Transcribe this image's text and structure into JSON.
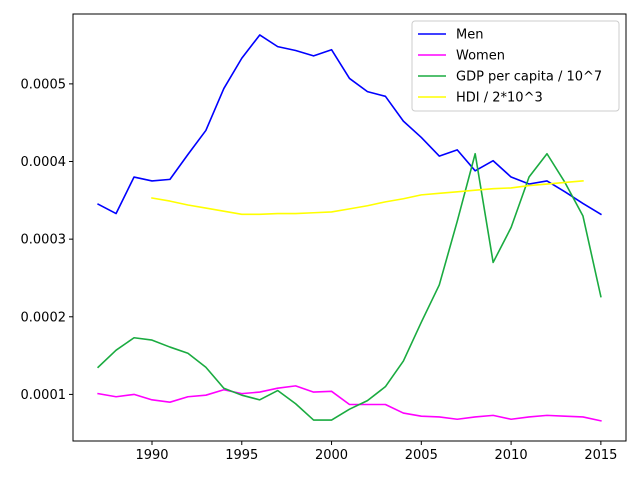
{
  "chart_data": {
    "type": "line",
    "title": "",
    "xlabel": "",
    "ylabel": "",
    "xlim": [
      1985.6,
      2016.4
    ],
    "ylim": [
      4e-05,
      0.00059
    ],
    "x_ticks": [
      1990,
      1995,
      2000,
      2005,
      2010,
      2015
    ],
    "x_tick_labels": [
      "1990",
      "1995",
      "2000",
      "2005",
      "2010",
      "2015"
    ],
    "y_ticks": [
      0.0001,
      0.0002,
      0.0003,
      0.0004,
      0.0005
    ],
    "y_tick_labels": [
      "0.0001",
      "0.0002",
      "0.0003",
      "0.0004",
      "0.0005"
    ],
    "grid": false,
    "legend_position": "top-right",
    "series": [
      {
        "name": "Men",
        "color": "#0000ff",
        "x": [
          1987,
          1988,
          1989,
          1990,
          1991,
          1992,
          1993,
          1994,
          1995,
          1996,
          1997,
          1998,
          1999,
          2000,
          2001,
          2002,
          2003,
          2004,
          2005,
          2006,
          2007,
          2008,
          2009,
          2010,
          2011,
          2012,
          2013,
          2014,
          2015
        ],
        "y": [
          0.000345,
          0.000333,
          0.00038,
          0.000375,
          0.000377,
          0.000409,
          0.00044,
          0.000494,
          0.000533,
          0.000563,
          0.000548,
          0.000543,
          0.000536,
          0.000544,
          0.000507,
          0.00049,
          0.000484,
          0.000452,
          0.000431,
          0.000407,
          0.000415,
          0.000388,
          0.000401,
          0.00038,
          0.000371,
          0.000375,
          0.000361,
          0.000346,
          0.000332
        ]
      },
      {
        "name": "Women",
        "color": "#ff00ff",
        "x": [
          1987,
          1988,
          1989,
          1990,
          1991,
          1992,
          1993,
          1994,
          1995,
          1996,
          1997,
          1998,
          1999,
          2000,
          2001,
          2002,
          2003,
          2004,
          2005,
          2006,
          2007,
          2008,
          2009,
          2010,
          2011,
          2012,
          2013,
          2014,
          2015
        ],
        "y": [
          0.000101,
          9.7e-05,
          0.0001,
          9.3e-05,
          9e-05,
          9.7e-05,
          9.9e-05,
          0.000106,
          0.000101,
          0.000103,
          0.000108,
          0.000111,
          0.000103,
          0.000104,
          8.7e-05,
          8.7e-05,
          8.7e-05,
          7.6e-05,
          7.2e-05,
          7.1e-05,
          6.8e-05,
          7.1e-05,
          7.3e-05,
          6.8e-05,
          7.1e-05,
          7.3e-05,
          7.2e-05,
          7.1e-05,
          6.6e-05
        ]
      },
      {
        "name": "GDP per capita / 10^7",
        "color": "#1aab40",
        "x": [
          1987,
          1988,
          1989,
          1990,
          1991,
          1992,
          1993,
          1994,
          1995,
          1996,
          1997,
          1998,
          1999,
          2000,
          2001,
          2002,
          2003,
          2004,
          2005,
          2006,
          2007,
          2008,
          2009,
          2010,
          2011,
          2012,
          2013,
          2014,
          2015
        ],
        "y": [
          0.000135,
          0.000157,
          0.000173,
          0.00017,
          0.000161,
          0.000153,
          0.000135,
          0.000108,
          9.9e-05,
          9.3e-05,
          0.000105,
          8.8e-05,
          6.7e-05,
          6.7e-05,
          8.1e-05,
          9.2e-05,
          0.00011,
          0.000143,
          0.000193,
          0.000241,
          0.000323,
          0.00041,
          0.00027,
          0.000315,
          0.00038,
          0.00041,
          0.000373,
          0.00033,
          0.000226
        ]
      },
      {
        "name": "HDI / 2*10^3",
        "color": "#ffff00",
        "x": [
          1990,
          1991,
          1992,
          1993,
          1994,
          1995,
          1996,
          1997,
          1998,
          1999,
          2000,
          2001,
          2002,
          2003,
          2004,
          2005,
          2006,
          2007,
          2008,
          2009,
          2010,
          2011,
          2012,
          2013,
          2014
        ],
        "y": [
          0.000353,
          0.000349,
          0.000344,
          0.00034,
          0.000336,
          0.000332,
          0.000332,
          0.000333,
          0.000333,
          0.000334,
          0.000335,
          0.000339,
          0.000343,
          0.000348,
          0.000352,
          0.000357,
          0.000359,
          0.000361,
          0.000363,
          0.000365,
          0.000366,
          0.000369,
          0.000371,
          0.000373,
          0.000375
        ]
      }
    ]
  }
}
